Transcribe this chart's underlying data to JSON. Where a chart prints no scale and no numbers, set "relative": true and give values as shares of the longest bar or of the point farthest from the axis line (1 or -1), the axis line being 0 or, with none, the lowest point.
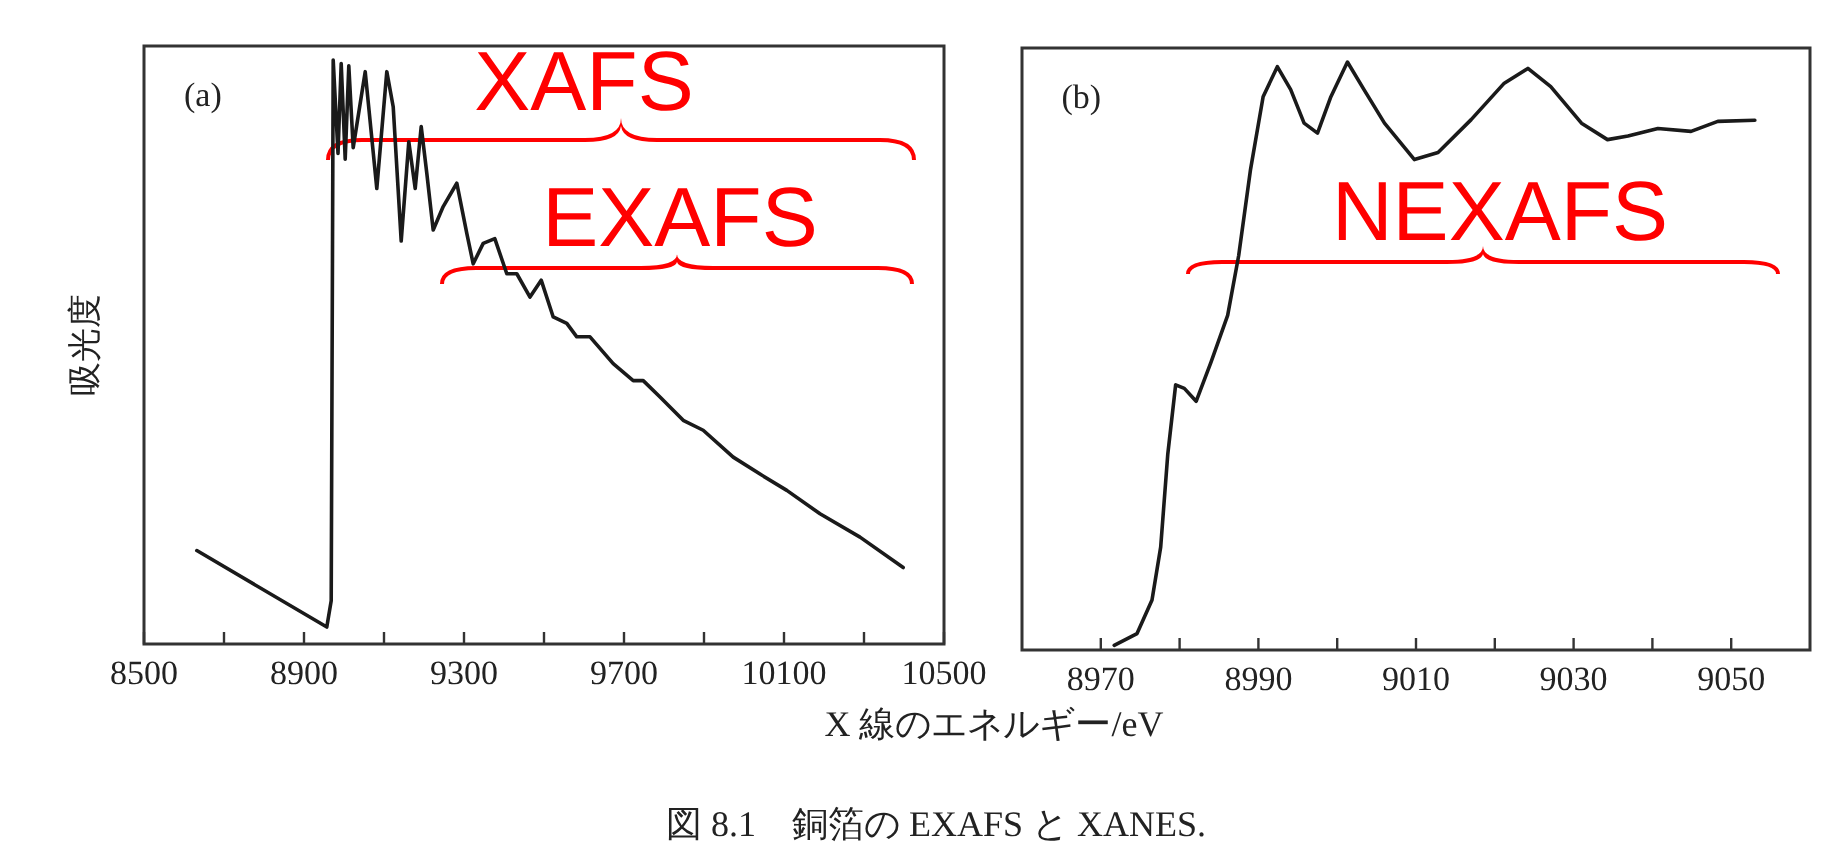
{
  "chart_data": [
    {
      "type": "line",
      "relative": true,
      "xlabel": "X 線のエネルギー/eV",
      "ylabel": "吸光度",
      "annotations": [
        "(a)",
        "XAFS",
        "EXAFS",
        "図 8.1　銅箔の EXAFS と XANES."
      ],
      "xlim": [
        8500,
        10500
      ],
      "xticks": [
        8500,
        {
          "value": 8700,
          "label": null
        },
        8900,
        {
          "value": 9100,
          "label": null
        },
        9300,
        {
          "value": 9500,
          "label": null
        },
        9700,
        {
          "value": 9900,
          "label": null
        },
        10100,
        {
          "value": 10300,
          "label": null
        },
        10500
      ],
      "x": [
        8632,
        8957,
        8968,
        8973,
        8985,
        8993,
        9003,
        9012,
        9023,
        9053,
        9082,
        9107,
        9123,
        9143,
        9162,
        9178,
        9193,
        9207,
        9223,
        9248,
        9282,
        9307,
        9323,
        9348,
        9377,
        9407,
        9432,
        9465,
        9493,
        9523,
        9557,
        9582,
        9615,
        9673,
        9723,
        9748,
        9790,
        9848,
        9898,
        9973,
        10040,
        10107,
        10190,
        10290,
        10398
      ],
      "series": [
        {
          "color": "#1a1a1a",
          "values": [
            0.16,
            0.029,
            0.074,
            1.0,
            0.84,
            0.994,
            0.83,
            0.99,
            0.85,
            0.98,
            0.78,
            0.98,
            0.92,
            0.69,
            0.86,
            0.78,
            0.886,
            0.806,
            0.709,
            0.749,
            0.789,
            0.703,
            0.651,
            0.686,
            0.694,
            0.634,
            0.634,
            0.594,
            0.623,
            0.56,
            0.549,
            0.526,
            0.526,
            0.48,
            0.451,
            0.451,
            0.423,
            0.383,
            0.366,
            0.32,
            0.291,
            0.263,
            0.223,
            0.183,
            0.131
          ]
        }
      ]
    },
    {
      "type": "line",
      "relative": true,
      "annotations": [
        "(b)",
        "NEXAFS"
      ],
      "xlim": [
        8960,
        9060
      ],
      "xticks": [
        8970,
        {
          "value": 8980,
          "label": null
        },
        8990,
        {
          "value": 9000,
          "label": null
        },
        9010,
        {
          "value": 9020,
          "label": null
        },
        9030,
        {
          "value": 9040,
          "label": null
        },
        9050
      ],
      "x": [
        8971.7,
        8974.6,
        8976.5,
        8977.6,
        8978.5,
        8979.5,
        8980.6,
        8982.1,
        8984.0,
        8986.1,
        8987.5,
        8989.0,
        8990.6,
        8992.4,
        8994.1,
        8995.8,
        8997.5,
        8999.2,
        9001.3,
        9003.4,
        9006.0,
        9009.8,
        9012.8,
        9017.0,
        9021.2,
        9024.2,
        9027.1,
        9031.0,
        9034.3,
        9036.9,
        9040.7,
        9044.9,
        9048.3,
        9053.0
      ],
      "series": [
        {
          "color": "#1a1a1a",
          "values": [
            0.008,
            0.028,
            0.085,
            0.175,
            0.333,
            0.451,
            0.445,
            0.423,
            0.49,
            0.569,
            0.671,
            0.817,
            0.941,
            0.992,
            0.953,
            0.896,
            0.879,
            0.941,
            1.0,
            0.953,
            0.896,
            0.834,
            0.846,
            0.902,
            0.964,
            0.989,
            0.958,
            0.896,
            0.868,
            0.874,
            0.887,
            0.882,
            0.899,
            0.901
          ]
        }
      ]
    }
  ]
}
